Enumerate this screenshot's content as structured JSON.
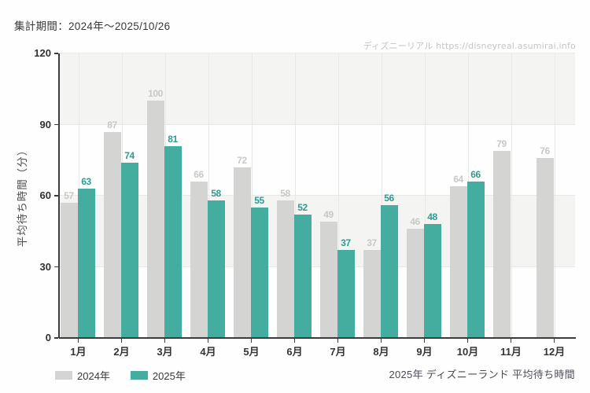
{
  "header": {
    "period": "集計期間：2024年～2025/10/26",
    "watermark": "ディズニーリアル https://disneyreal.asumirai.info"
  },
  "chart_data": {
    "type": "bar",
    "title": "",
    "xlabel": "",
    "ylabel": "平均待ち時間（分）",
    "ylim": [
      0,
      120
    ],
    "yticks": [
      0,
      30,
      60,
      90,
      120
    ],
    "categories": [
      "1月",
      "2月",
      "3月",
      "4月",
      "5月",
      "6月",
      "7月",
      "8月",
      "9月",
      "10月",
      "11月",
      "12月"
    ],
    "series": [
      {
        "name": "2024年",
        "color": "#d4d5d2",
        "label_color": "#c7c9c6",
        "values": [
          57,
          87,
          100,
          66,
          72,
          58,
          49,
          37,
          46,
          64,
          79,
          76
        ]
      },
      {
        "name": "2025年",
        "color": "#45aca0",
        "label_color": "#2d9c90",
        "values": [
          63,
          74,
          81,
          58,
          55,
          52,
          37,
          56,
          48,
          66,
          null,
          null
        ]
      }
    ],
    "grid": "horizontal lines every 30 with alternating shaded bands; vertical lines at month centers",
    "legend_position": "bottom-left",
    "style": {
      "band_color": "#f4f5f2",
      "grid_color": "#e7e9e6",
      "axis_color": "#3a3c3e"
    }
  },
  "footer": {
    "caption": "2025年 ディズニーランド 平均待ち時間"
  }
}
